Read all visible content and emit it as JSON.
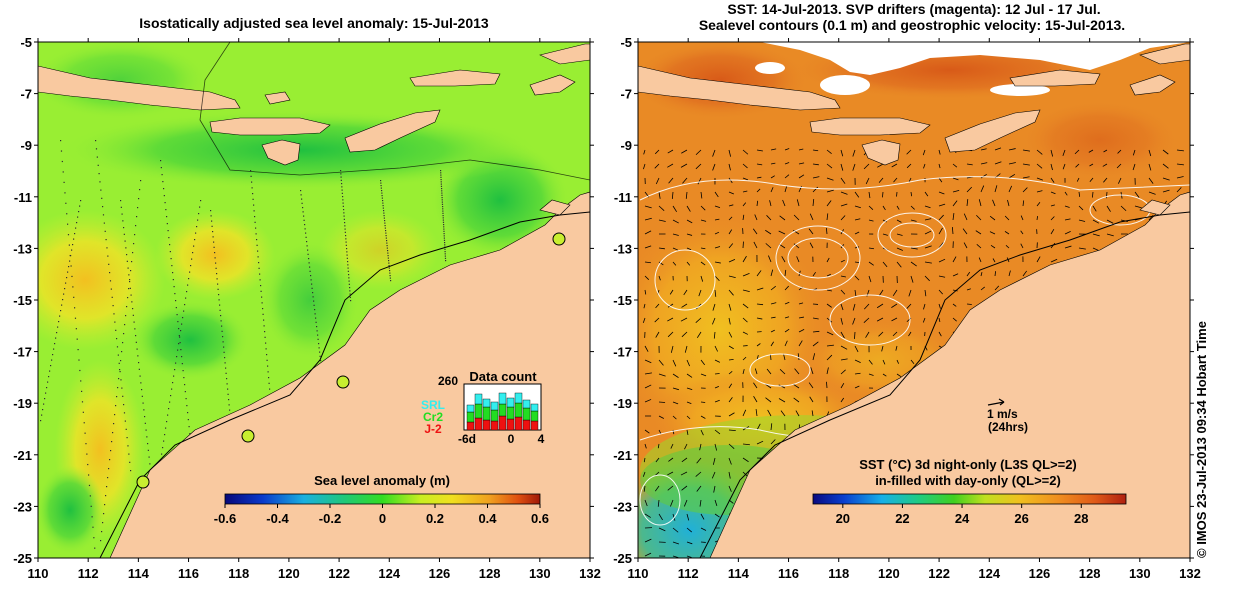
{
  "left_panel": {
    "title": "Isostatically adjusted sea level anomaly: 15-Jul-2013",
    "colorbar": {
      "label": "Sea level anomaly (m)",
      "ticks": [
        "-0.6",
        "-0.4",
        "-0.2",
        "0",
        "0.2",
        "0.4",
        "0.6"
      ],
      "range": [
        -0.6,
        0.6
      ]
    },
    "inset": {
      "title": "Data count",
      "ymax_label": "260",
      "x_ticks": [
        "-6d",
        "0",
        "4"
      ],
      "legend": [
        {
          "label": "SRL",
          "color": "#33eeee"
        },
        {
          "label": "Cr2",
          "color": "#22dd22"
        },
        {
          "label": "J-2",
          "color": "#ee1111"
        }
      ]
    }
  },
  "right_panel": {
    "title_line1": "SST: 14-Jul-2013. SVP drifters (magenta): 12 Jul - 17 Jul.",
    "title_line2": "Sealevel contours (0.1 m) and geostrophic velocity: 15-Jul-2013.",
    "scale_arrow": {
      "speed": "1 m/s",
      "duration": "(24hrs)"
    },
    "colorbar": {
      "label_line1": "SST (°C)  3d night-only (L3S QL>=2)",
      "label_line2": "in-filled with day-only (QL>=2)",
      "ticks": [
        "20",
        "22",
        "24",
        "26",
        "28"
      ],
      "range": [
        19,
        29.5
      ]
    }
  },
  "axes": {
    "x_ticks": [
      "110",
      "112",
      "114",
      "116",
      "118",
      "120",
      "122",
      "124",
      "126",
      "128",
      "130",
      "132"
    ],
    "y_ticks": [
      "-5",
      "-7",
      "-9",
      "-11",
      "-13",
      "-15",
      "-17",
      "-19",
      "-21",
      "-23",
      "-25"
    ],
    "lon_range": [
      110,
      132
    ],
    "lat_range": [
      -25,
      -5
    ]
  },
  "credit": "© IMOS 23-Jul-2013 09:34 Hobart Time",
  "colors": {
    "land": "#f9c9a0",
    "sla_base": "#99ee33",
    "sst_base": "#e98a25"
  }
}
